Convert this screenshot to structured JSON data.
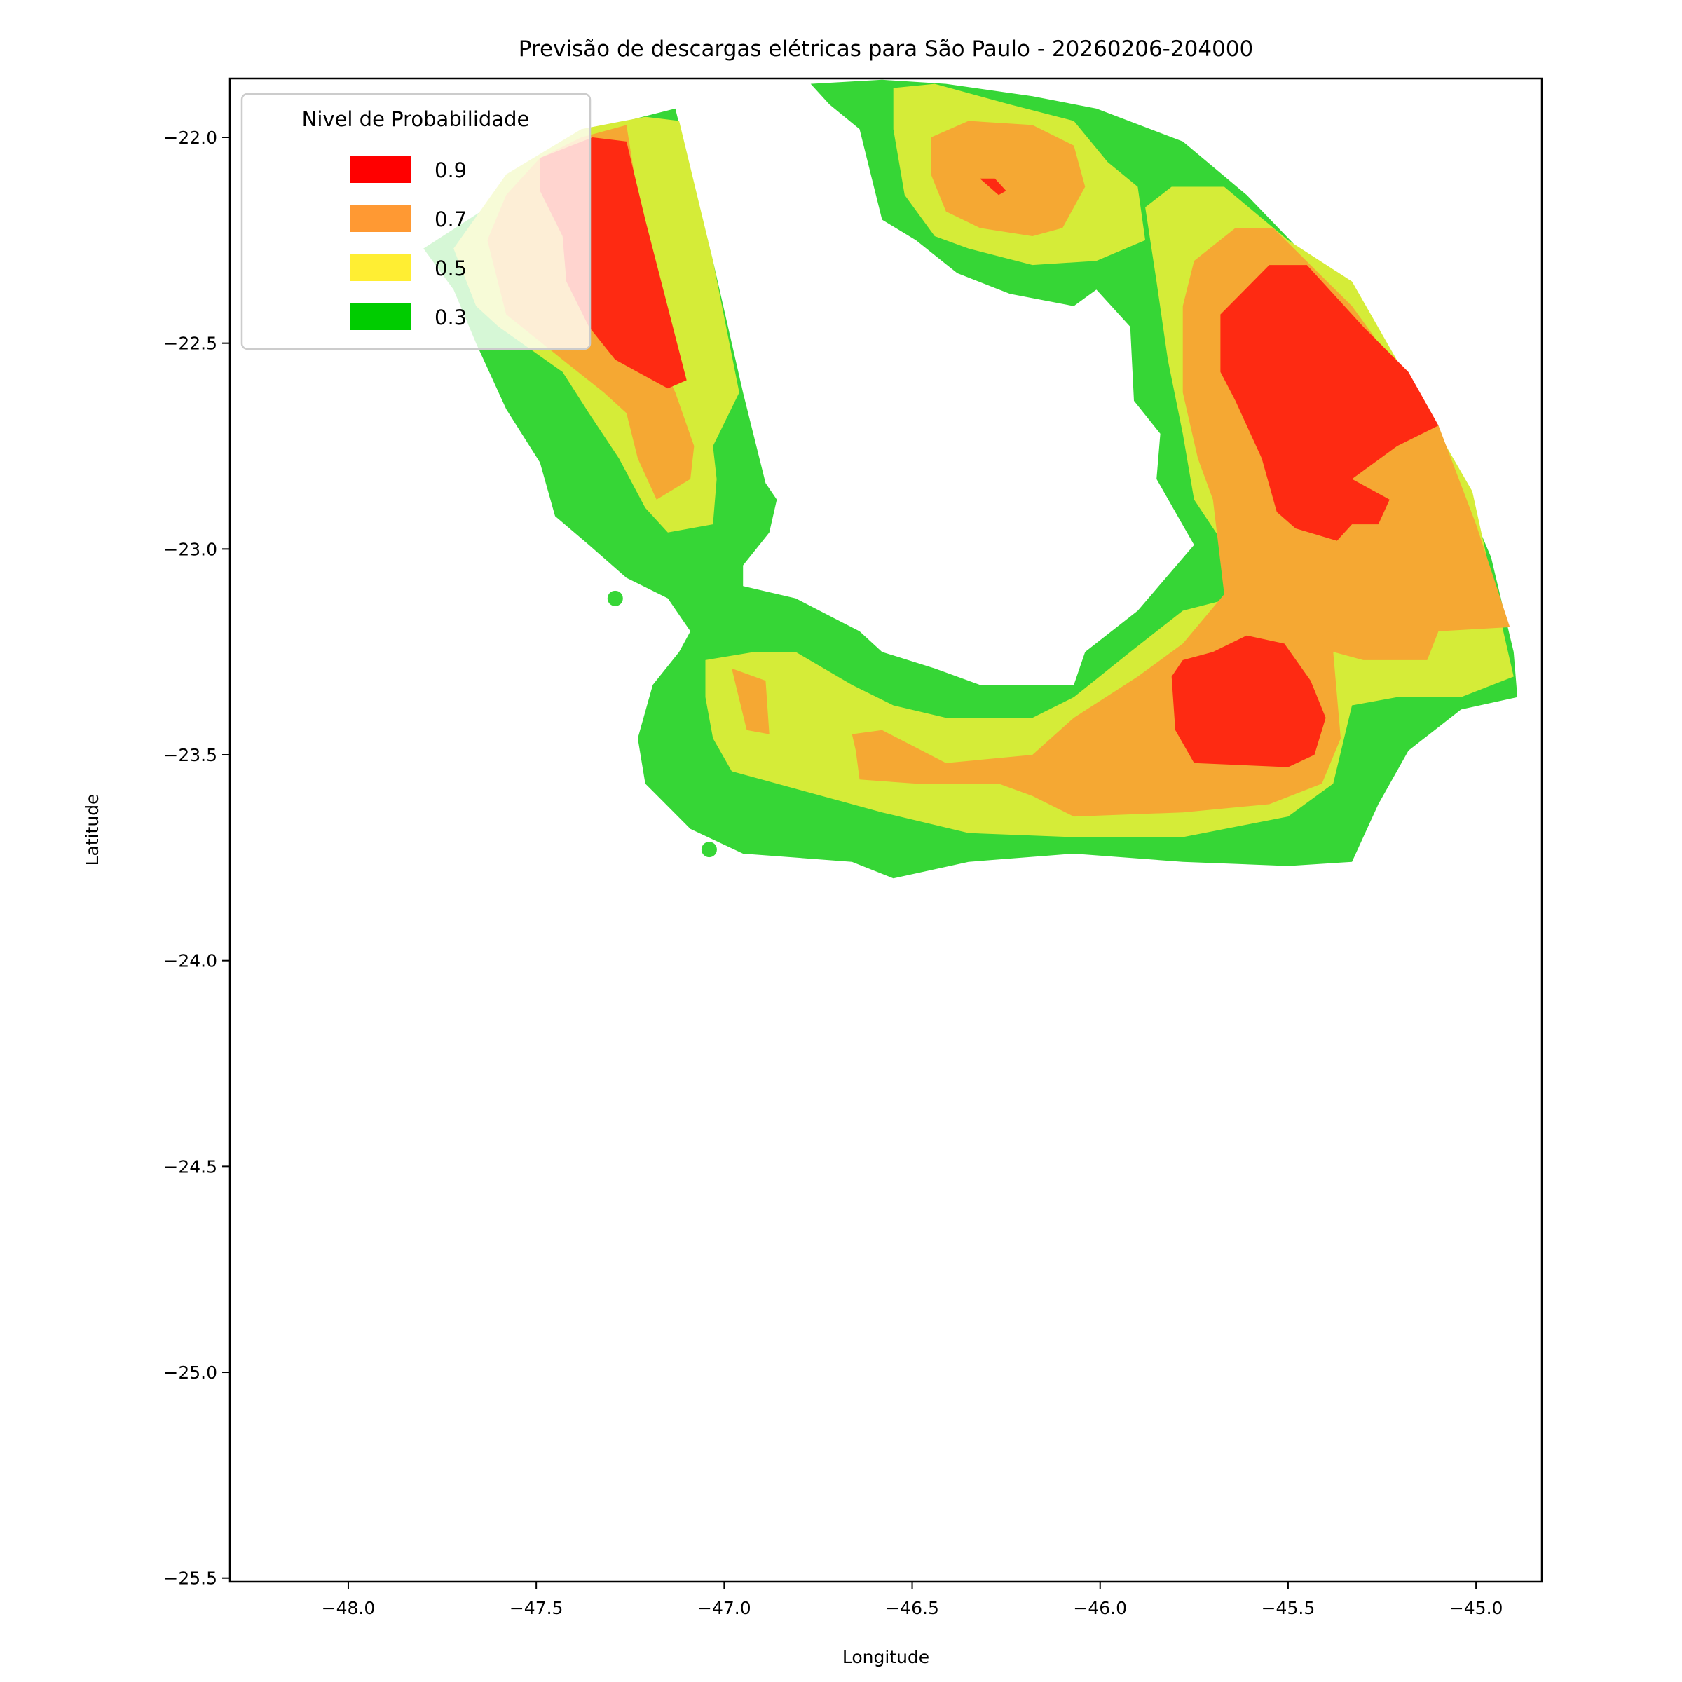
{
  "chart_data": {
    "type": "contour",
    "title": "Previsão de descargas elétricas para São Paulo - 20260206-204000",
    "xlabel": "Longitude",
    "ylabel": "Latitude",
    "xlim": [
      -48.315,
      -44.825
    ],
    "ylim": [
      -25.509,
      -21.857
    ],
    "xticks": [
      -48.0,
      -47.5,
      -47.0,
      -46.5,
      -46.0,
      -45.5,
      -45.0
    ],
    "xtick_labels": [
      "−48.0",
      "−47.5",
      "−47.0",
      "−46.5",
      "−46.0",
      "−45.5",
      "−45.0"
    ],
    "yticks": [
      -22.0,
      -22.5,
      -23.0,
      -23.5,
      -24.0,
      -24.5,
      -25.0,
      -25.5
    ],
    "ytick_labels": [
      "−22.0",
      "−22.5",
      "−23.0",
      "−23.5",
      "−24.0",
      "−24.5",
      "−25.0",
      "−25.5"
    ],
    "grid": false,
    "legend": {
      "title": "Nivel de Probabilidade",
      "placement": "top-left",
      "entries": [
        {
          "label": "0.9",
          "color": "#ff0000"
        },
        {
          "label": "0.7",
          "color": "#ff9933"
        },
        {
          "label": "0.5",
          "color": "#ffee33"
        },
        {
          "label": "0.3",
          "color": "#00cc00"
        }
      ]
    },
    "levels": [
      {
        "level": 0.3,
        "color": "#36d636",
        "polygons": [
          [
            [
              -47.8,
              -22.27
            ],
            [
              -47.63,
              -22.17
            ],
            [
              -47.5,
              -22.06
            ],
            [
              -47.26,
              -21.96
            ],
            [
              -47.13,
              -21.93
            ],
            [
              -47.03,
              -22.3
            ],
            [
              -46.95,
              -22.62
            ],
            [
              -46.89,
              -22.84
            ],
            [
              -46.86,
              -22.88
            ],
            [
              -46.88,
              -22.96
            ],
            [
              -46.95,
              -23.04
            ],
            [
              -46.95,
              -23.09
            ],
            [
              -46.81,
              -23.12
            ],
            [
              -46.64,
              -23.2
            ],
            [
              -46.58,
              -23.25
            ],
            [
              -46.44,
              -23.29
            ],
            [
              -46.32,
              -23.33
            ],
            [
              -46.07,
              -23.33
            ],
            [
              -46.04,
              -23.25
            ],
            [
              -45.9,
              -23.15
            ],
            [
              -45.75,
              -22.99
            ],
            [
              -45.85,
              -22.83
            ],
            [
              -45.84,
              -22.72
            ],
            [
              -45.91,
              -22.64
            ],
            [
              -45.92,
              -22.46
            ],
            [
              -46.01,
              -22.37
            ],
            [
              -46.07,
              -22.41
            ],
            [
              -46.24,
              -22.38
            ],
            [
              -46.38,
              -22.33
            ],
            [
              -46.49,
              -22.25
            ],
            [
              -46.58,
              -22.2
            ],
            [
              -46.61,
              -22.09
            ],
            [
              -46.64,
              -21.98
            ],
            [
              -46.72,
              -21.92
            ],
            [
              -46.77,
              -21.87
            ],
            [
              -46.58,
              -21.86
            ],
            [
              -46.41,
              -21.87
            ],
            [
              -46.18,
              -21.9
            ],
            [
              -46.01,
              -21.93
            ],
            [
              -45.78,
              -22.01
            ],
            [
              -45.61,
              -22.14
            ],
            [
              -45.41,
              -22.33
            ],
            [
              -45.27,
              -22.46
            ],
            [
              -45.1,
              -22.72
            ],
            [
              -44.96,
              -23.02
            ],
            [
              -44.9,
              -23.25
            ],
            [
              -44.89,
              -23.36
            ],
            [
              -45.04,
              -23.39
            ],
            [
              -45.18,
              -23.49
            ],
            [
              -45.26,
              -23.62
            ],
            [
              -45.33,
              -23.76
            ],
            [
              -45.5,
              -23.77
            ],
            [
              -45.78,
              -23.76
            ],
            [
              -46.07,
              -23.74
            ],
            [
              -46.35,
              -23.76
            ],
            [
              -46.55,
              -23.8
            ],
            [
              -46.66,
              -23.76
            ],
            [
              -46.95,
              -23.74
            ],
            [
              -47.09,
              -23.68
            ],
            [
              -47.21,
              -23.57
            ],
            [
              -47.23,
              -23.46
            ],
            [
              -47.19,
              -23.33
            ],
            [
              -47.12,
              -23.25
            ],
            [
              -47.09,
              -23.2
            ],
            [
              -47.15,
              -23.12
            ],
            [
              -47.26,
              -23.07
            ],
            [
              -47.36,
              -22.99
            ],
            [
              -47.45,
              -22.92
            ],
            [
              -47.49,
              -22.79
            ],
            [
              -47.58,
              -22.66
            ],
            [
              -47.66,
              -22.5
            ],
            [
              -47.72,
              -22.37
            ]
          ]
        ]
      },
      {
        "level": 0.5,
        "color": "#d5ec38",
        "polygons": [
          [
            [
              -47.6,
              -22.46
            ],
            [
              -47.43,
              -22.57
            ],
            [
              -47.36,
              -22.67
            ],
            [
              -47.28,
              -22.78
            ],
            [
              -47.21,
              -22.9
            ],
            [
              -47.15,
              -22.96
            ],
            [
              -47.03,
              -22.94
            ],
            [
              -47.02,
              -22.83
            ],
            [
              -47.03,
              -22.75
            ],
            [
              -46.96,
              -22.62
            ],
            [
              -47.03,
              -22.3
            ],
            [
              -47.12,
              -21.96
            ],
            [
              -47.21,
              -21.95
            ],
            [
              -47.38,
              -21.98
            ],
            [
              -47.58,
              -22.09
            ],
            [
              -47.72,
              -22.27
            ],
            [
              -47.66,
              -22.41
            ]
          ],
          [
            [
              -47.05,
              -23.27
            ],
            [
              -46.92,
              -23.25
            ],
            [
              -46.81,
              -23.25
            ],
            [
              -46.66,
              -23.33
            ],
            [
              -46.55,
              -23.38
            ],
            [
              -46.41,
              -23.41
            ],
            [
              -46.18,
              -23.41
            ],
            [
              -46.07,
              -23.36
            ],
            [
              -45.92,
              -23.25
            ],
            [
              -45.78,
              -23.15
            ],
            [
              -45.61,
              -23.11
            ],
            [
              -45.67,
              -22.99
            ],
            [
              -45.75,
              -22.88
            ],
            [
              -45.78,
              -22.72
            ],
            [
              -45.82,
              -22.54
            ],
            [
              -45.85,
              -22.35
            ],
            [
              -45.88,
              -22.17
            ],
            [
              -45.81,
              -22.12
            ],
            [
              -45.67,
              -22.12
            ],
            [
              -45.5,
              -22.25
            ],
            [
              -45.33,
              -22.35
            ],
            [
              -45.13,
              -22.67
            ],
            [
              -45.01,
              -22.86
            ],
            [
              -44.94,
              -23.15
            ],
            [
              -44.9,
              -23.31
            ],
            [
              -45.04,
              -23.36
            ],
            [
              -45.21,
              -23.36
            ],
            [
              -45.33,
              -23.38
            ],
            [
              -45.38,
              -23.57
            ],
            [
              -45.5,
              -23.65
            ],
            [
              -45.78,
              -23.7
            ],
            [
              -46.07,
              -23.7
            ],
            [
              -46.35,
              -23.69
            ],
            [
              -46.58,
              -23.64
            ],
            [
              -46.86,
              -23.57
            ],
            [
              -46.98,
              -23.54
            ],
            [
              -47.03,
              -23.46
            ],
            [
              -47.05,
              -23.36
            ]
          ],
          [
            [
              -46.55,
              -21.88
            ],
            [
              -46.44,
              -21.87
            ],
            [
              -46.24,
              -21.92
            ],
            [
              -46.07,
              -21.96
            ],
            [
              -45.98,
              -22.06
            ],
            [
              -45.9,
              -22.12
            ],
            [
              -45.88,
              -22.25
            ],
            [
              -46.01,
              -22.3
            ],
            [
              -46.18,
              -22.31
            ],
            [
              -46.35,
              -22.27
            ],
            [
              -46.44,
              -22.24
            ],
            [
              -46.52,
              -22.14
            ],
            [
              -46.55,
              -21.98
            ]
          ]
        ]
      },
      {
        "level": 0.7,
        "color": "#f5a833",
        "polygons": [
          [
            [
              -46.45,
              -22.0
            ],
            [
              -46.35,
              -21.96
            ],
            [
              -46.18,
              -21.97
            ],
            [
              -46.07,
              -22.02
            ],
            [
              -46.04,
              -22.12
            ],
            [
              -46.1,
              -22.22
            ],
            [
              -46.18,
              -22.24
            ],
            [
              -46.32,
              -22.22
            ],
            [
              -46.41,
              -22.18
            ],
            [
              -46.45,
              -22.09
            ]
          ],
          [
            [
              -47.58,
              -22.43
            ],
            [
              -47.43,
              -22.54
            ],
            [
              -47.32,
              -22.62
            ],
            [
              -47.26,
              -22.67
            ],
            [
              -47.23,
              -22.78
            ],
            [
              -47.18,
              -22.88
            ],
            [
              -47.09,
              -22.83
            ],
            [
              -47.08,
              -22.75
            ],
            [
              -47.13,
              -22.62
            ],
            [
              -47.21,
              -22.46
            ],
            [
              -47.22,
              -22.2
            ],
            [
              -47.26,
              -21.97
            ],
            [
              -47.38,
              -22.0
            ],
            [
              -47.49,
              -22.05
            ],
            [
              -47.58,
              -22.14
            ],
            [
              -47.63,
              -22.25
            ]
          ],
          [
            [
              -45.78,
              -22.41
            ],
            [
              -45.75,
              -22.3
            ],
            [
              -45.64,
              -22.22
            ],
            [
              -45.54,
              -22.22
            ],
            [
              -45.33,
              -22.41
            ],
            [
              -45.1,
              -22.7
            ],
            [
              -45.0,
              -22.94
            ],
            [
              -44.91,
              -23.19
            ],
            [
              -45.1,
              -23.2
            ],
            [
              -45.13,
              -23.27
            ],
            [
              -45.3,
              -23.27
            ],
            [
              -45.38,
              -23.25
            ],
            [
              -45.36,
              -23.46
            ],
            [
              -45.41,
              -23.57
            ],
            [
              -45.55,
              -23.62
            ],
            [
              -45.78,
              -23.64
            ],
            [
              -46.07,
              -23.65
            ],
            [
              -46.18,
              -23.6
            ],
            [
              -46.27,
              -23.57
            ],
            [
              -46.49,
              -23.57
            ],
            [
              -46.64,
              -23.56
            ],
            [
              -46.65,
              -23.49
            ],
            [
              -46.66,
              -23.45
            ],
            [
              -46.58,
              -23.44
            ],
            [
              -46.41,
              -23.52
            ],
            [
              -46.18,
              -23.5
            ],
            [
              -46.07,
              -23.41
            ],
            [
              -45.9,
              -23.31
            ],
            [
              -45.78,
              -23.23
            ],
            [
              -45.67,
              -23.11
            ],
            [
              -45.7,
              -22.88
            ],
            [
              -45.74,
              -22.78
            ],
            [
              -45.78,
              -22.62
            ]
          ],
          [
            [
              -46.98,
              -23.29
            ],
            [
              -46.89,
              -23.32
            ],
            [
              -46.88,
              -23.45
            ],
            [
              -46.94,
              -23.44
            ]
          ]
        ]
      },
      {
        "level": 0.9,
        "color": "#fe2a12",
        "polygons": [
          [
            [
              -47.49,
              -22.05
            ],
            [
              -47.35,
              -22.0
            ],
            [
              -47.26,
              -22.01
            ],
            [
              -47.21,
              -22.2
            ],
            [
              -47.1,
              -22.59
            ],
            [
              -47.15,
              -22.61
            ],
            [
              -47.21,
              -22.58
            ],
            [
              -47.29,
              -22.54
            ],
            [
              -47.36,
              -22.46
            ],
            [
              -47.42,
              -22.35
            ],
            [
              -47.43,
              -22.24
            ],
            [
              -47.49,
              -22.13
            ]
          ],
          [
            [
              -45.68,
              -22.43
            ],
            [
              -45.55,
              -22.31
            ],
            [
              -45.45,
              -22.31
            ],
            [
              -45.3,
              -22.46
            ],
            [
              -45.18,
              -22.57
            ],
            [
              -45.1,
              -22.7
            ],
            [
              -45.21,
              -22.75
            ],
            [
              -45.33,
              -22.83
            ],
            [
              -45.23,
              -22.88
            ],
            [
              -45.26,
              -22.94
            ],
            [
              -45.33,
              -22.94
            ],
            [
              -45.37,
              -22.98
            ],
            [
              -45.48,
              -22.95
            ],
            [
              -45.53,
              -22.91
            ],
            [
              -45.57,
              -22.78
            ],
            [
              -45.64,
              -22.64
            ],
            [
              -45.68,
              -22.57
            ]
          ],
          [
            [
              -45.81,
              -23.31
            ],
            [
              -45.78,
              -23.27
            ],
            [
              -45.7,
              -23.25
            ],
            [
              -45.61,
              -23.21
            ],
            [
              -45.51,
              -23.23
            ],
            [
              -45.44,
              -23.32
            ],
            [
              -45.4,
              -23.41
            ],
            [
              -45.43,
              -23.5
            ],
            [
              -45.5,
              -23.53
            ],
            [
              -45.75,
              -23.52
            ],
            [
              -45.8,
              -23.44
            ]
          ],
          [
            [
              -46.32,
              -22.1
            ],
            [
              -46.28,
              -22.1
            ],
            [
              -46.25,
              -22.13
            ],
            [
              -46.27,
              -22.14
            ]
          ]
        ]
      }
    ],
    "points": [
      {
        "lon": -47.29,
        "lat": -23.12,
        "color": "#36d636"
      },
      {
        "lon": -47.04,
        "lat": -23.73,
        "color": "#36d636"
      },
      {
        "lon": -45.39,
        "lat": -23.22,
        "color": "#f5a833"
      }
    ]
  }
}
